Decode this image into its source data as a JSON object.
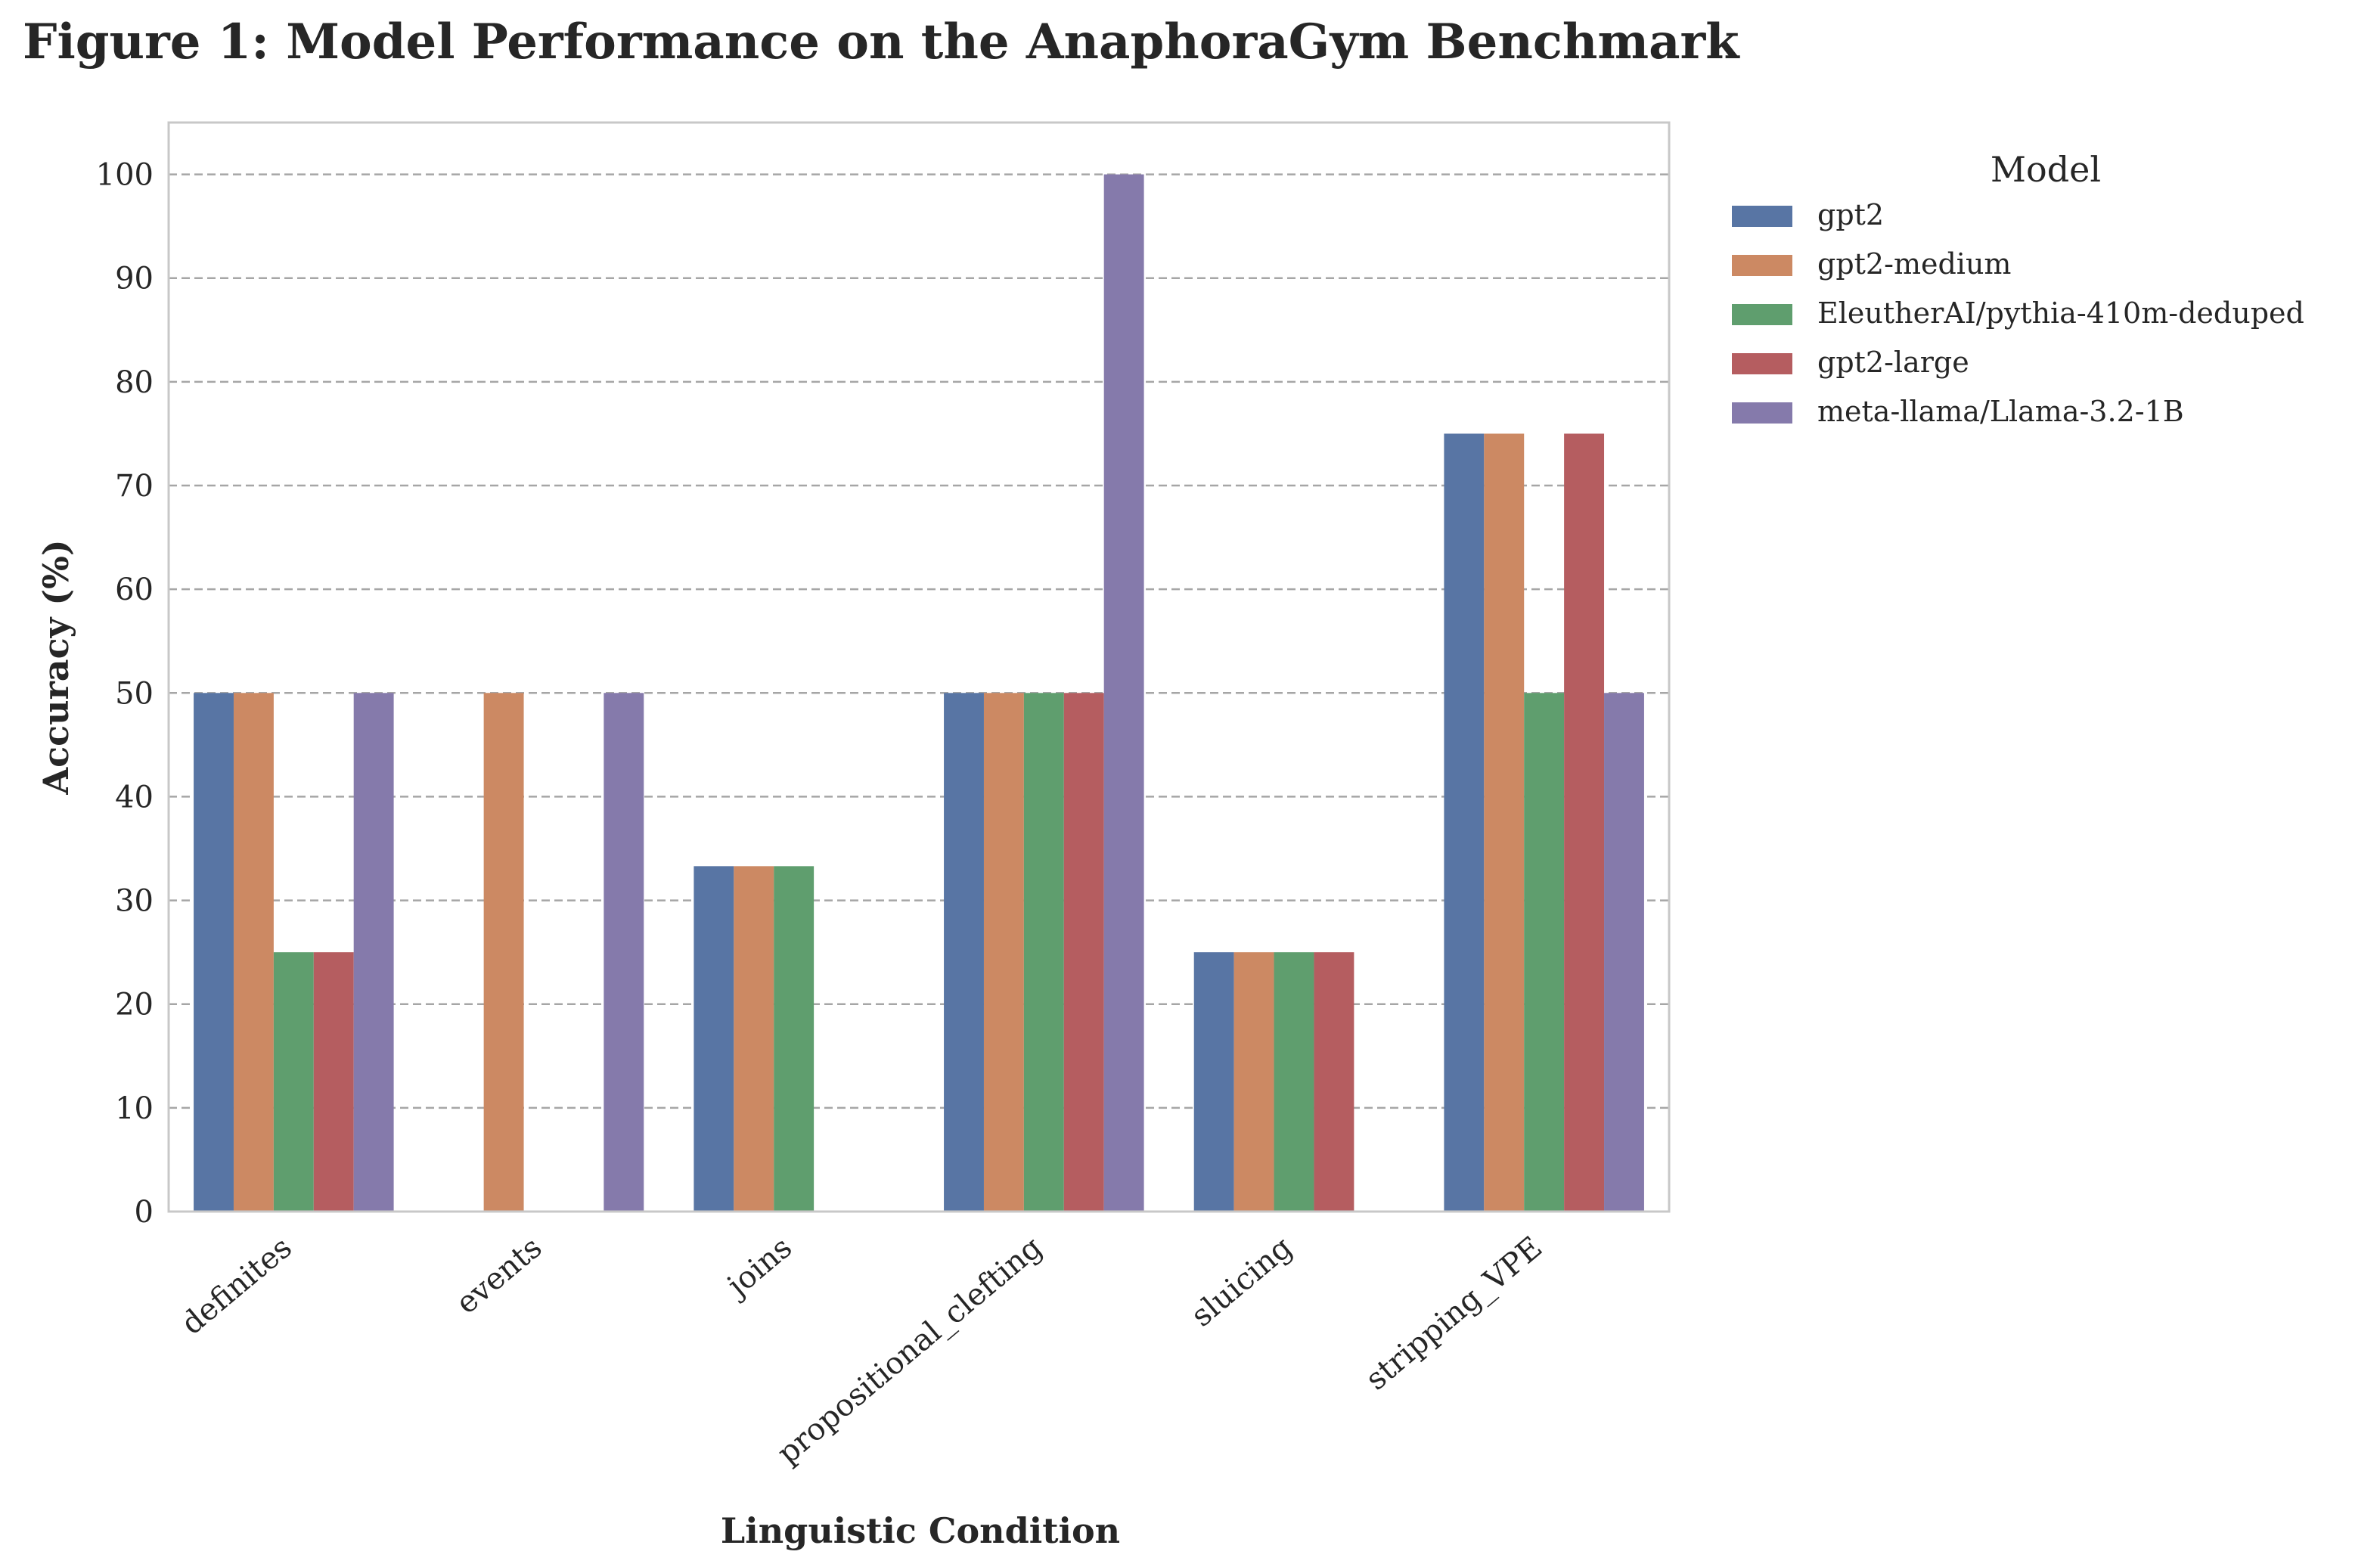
{
  "chart_data": {
    "type": "bar",
    "title": "Figure 1: Model Performance on the AnaphoraGym Benchmark",
    "xlabel": "Linguistic Condition",
    "ylabel": "Accuracy (%)",
    "ylim": [
      0,
      105
    ],
    "yticks": [
      0,
      10,
      20,
      30,
      40,
      50,
      60,
      70,
      80,
      90,
      100
    ],
    "grid": "horizontal dashed",
    "legend_title": "Model",
    "legend_position": "outside right, top",
    "categories": [
      "definites",
      "events",
      "joins",
      "propositional_clefting",
      "sluicing",
      "stripping_VPE"
    ],
    "series": [
      {
        "name": "gpt2",
        "color": "#5875a4",
        "values": [
          50,
          0,
          33.3,
          50,
          25,
          75
        ]
      },
      {
        "name": "gpt2-medium",
        "color": "#cc8963",
        "values": [
          50,
          50,
          33.3,
          50,
          25,
          75
        ]
      },
      {
        "name": "EleutherAI/pythia-410m-deduped",
        "color": "#5f9e6e",
        "values": [
          25,
          0,
          33.3,
          50,
          25,
          50
        ]
      },
      {
        "name": "gpt2-large",
        "color": "#b55d60",
        "values": [
          25,
          0,
          0,
          50,
          25,
          75
        ]
      },
      {
        "name": "meta-llama/Llama-3.2-1B",
        "color": "#857aab",
        "values": [
          50,
          50,
          0,
          100,
          0,
          50
        ]
      }
    ]
  }
}
